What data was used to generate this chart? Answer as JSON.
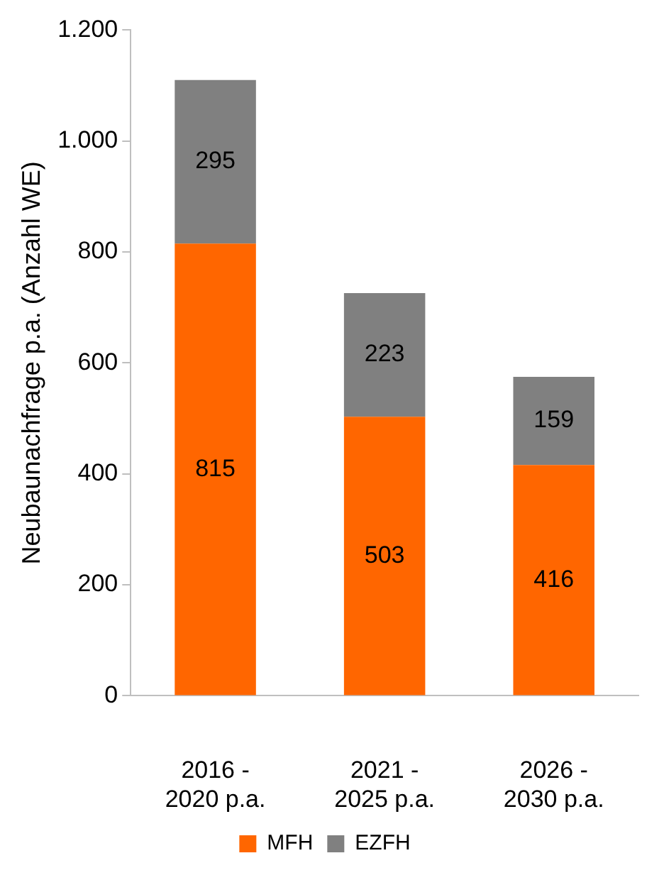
{
  "chart_data": {
    "type": "bar",
    "stacked": true,
    "ylabel": "Neubaunachfrage p.a. (Anzahl WE)",
    "categories": [
      "2016 - 2020 p.a.",
      "2021 - 2025 p.a.",
      "2026 - 2030 p.a."
    ],
    "series": [
      {
        "name": "MFH",
        "color": "#ff6600",
        "values": [
          815,
          503,
          416
        ]
      },
      {
        "name": "EZFH",
        "color": "#808080",
        "values": [
          295,
          223,
          159
        ]
      }
    ],
    "ylim": [
      0,
      1200
    ],
    "yticks": [
      0,
      200,
      400,
      600,
      800,
      {
        "value": 1000,
        "label": "1.000"
      },
      {
        "value": 1200,
        "label": "1.200"
      }
    ],
    "grid": false,
    "legend": "bottom",
    "data_labels": true
  }
}
